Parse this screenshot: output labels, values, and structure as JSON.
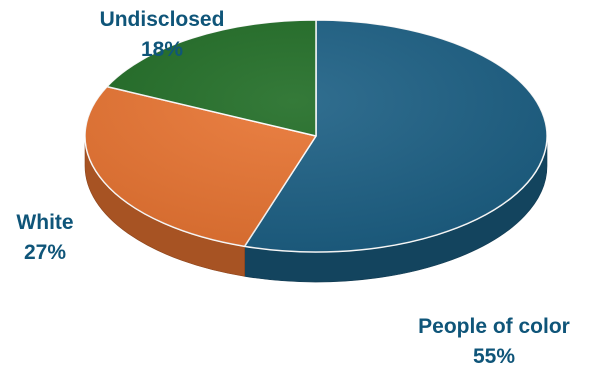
{
  "chart_data": {
    "type": "pie",
    "title": "",
    "style": "3d",
    "slices": [
      {
        "label": "People of color",
        "value": 55,
        "value_label": "55%",
        "color": "#1a5e83"
      },
      {
        "label": "White",
        "value": 27,
        "value_label": "27%",
        "color": "#e87330"
      },
      {
        "label": "Undisclosed",
        "value": 18,
        "value_label": "18%",
        "color": "#1e6b23"
      }
    ],
    "label_color": "#0f5579",
    "legend": "none"
  }
}
